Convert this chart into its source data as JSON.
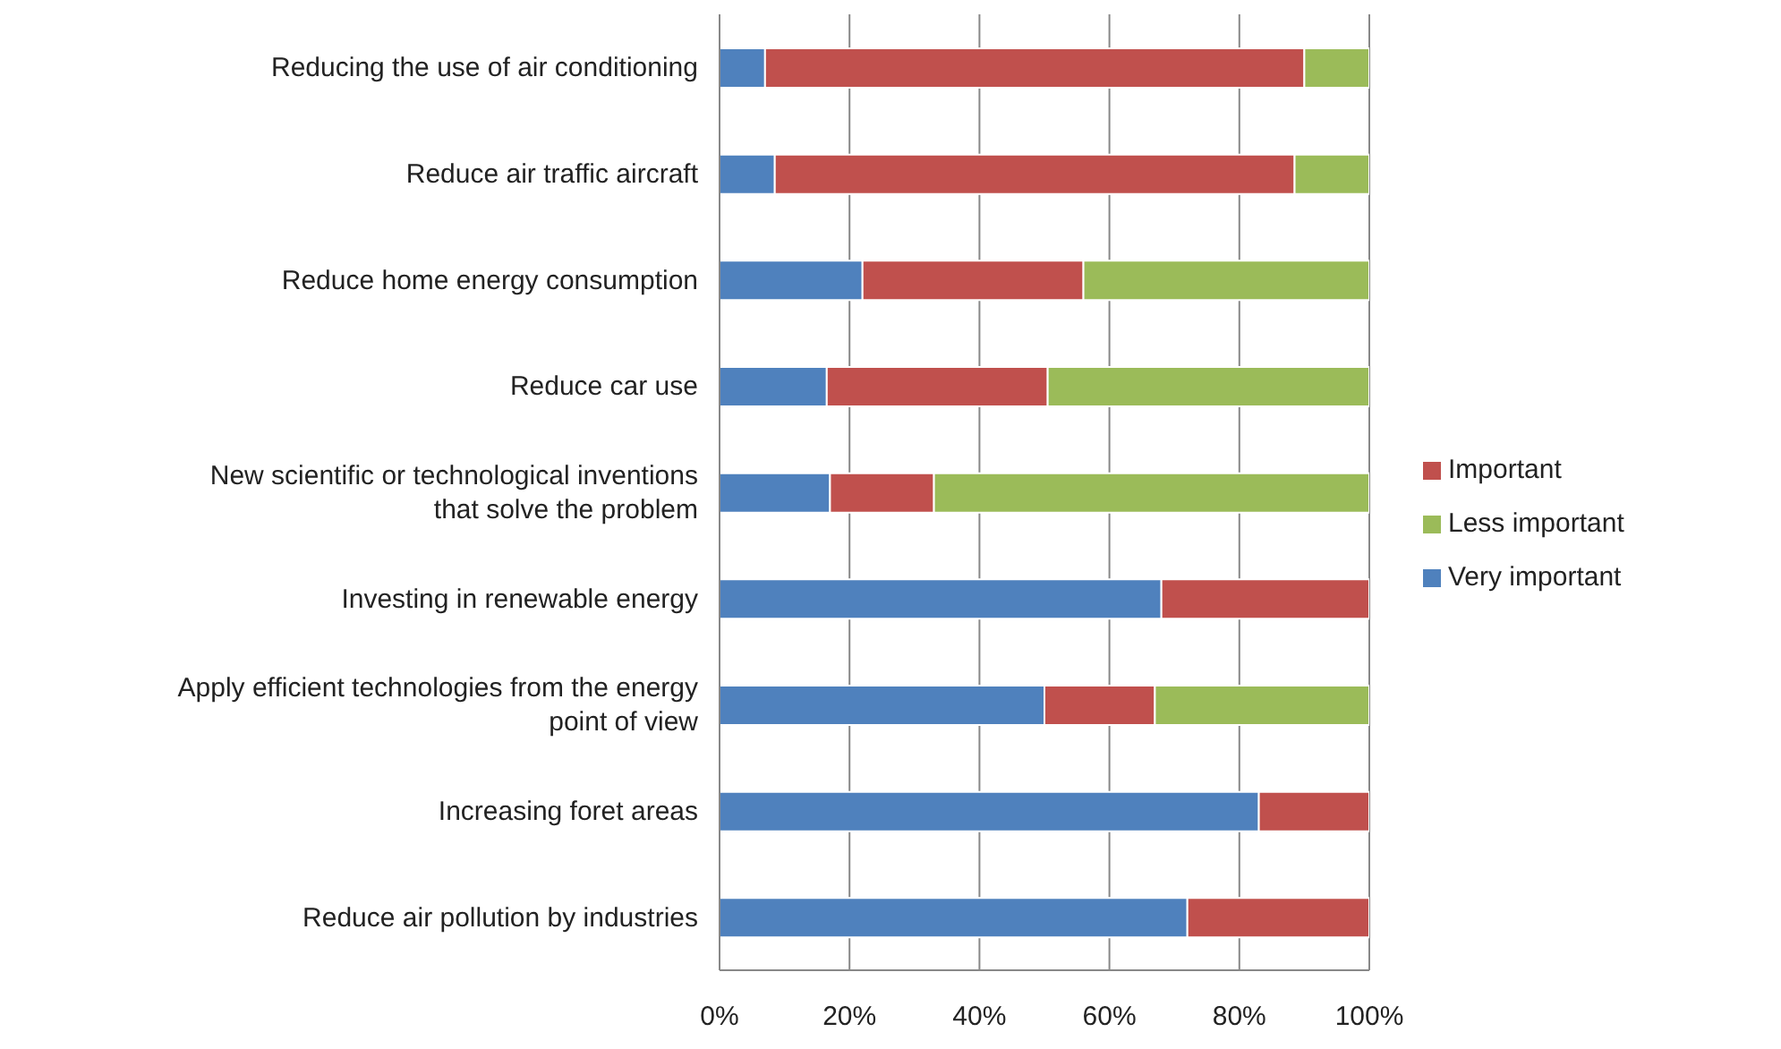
{
  "chart_data": {
    "type": "bar",
    "orientation": "horizontal",
    "stacked": true,
    "categories": [
      "Reducing the use of air conditioning",
      "Reduce air traffic aircraft",
      "Reduce home energy consumption",
      "Reduce car use",
      "New scientific or technological inventions that solve the problem",
      "Investing in renewable energy",
      "Apply efficient technologies from the energy point of view",
      "Increasing foret areas",
      "Reduce air pollution by industries"
    ],
    "series": [
      {
        "name": "Very important",
        "color": "#4f81bd",
        "values": [
          7,
          8.5,
          22,
          16.5,
          17,
          68,
          50,
          83,
          72
        ]
      },
      {
        "name": "Important",
        "color": "#c0504d",
        "values": [
          83,
          80,
          34,
          34,
          16,
          32,
          17,
          17,
          28
        ]
      },
      {
        "name": "Less important",
        "color": "#9bbb59",
        "values": [
          10,
          11.5,
          44,
          49.5,
          67,
          0,
          33,
          0,
          0
        ]
      }
    ],
    "xlim": [
      0,
      100
    ],
    "xticks": [
      {
        "value": 0,
        "label": "0%"
      },
      {
        "value": 20,
        "label": "20%"
      },
      {
        "value": 40,
        "label": "40%"
      },
      {
        "value": 60,
        "label": "60%"
      },
      {
        "value": 80,
        "label": "80%"
      },
      {
        "value": 100,
        "label": "100%"
      }
    ],
    "grid": "x",
    "legend": "right"
  }
}
